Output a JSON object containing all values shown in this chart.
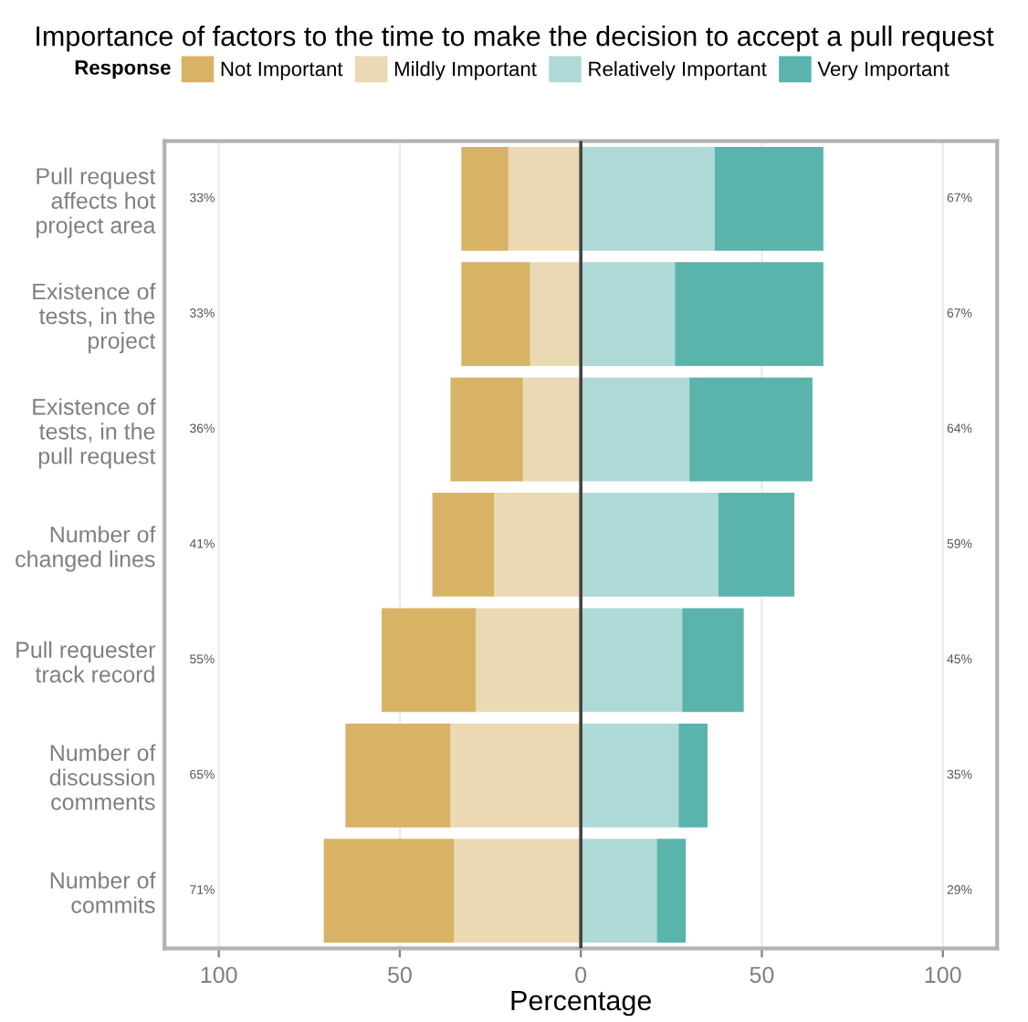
{
  "chart_data": {
    "type": "bar",
    "orientation": "horizontal",
    "stacked": true,
    "title": "Importance of factors to the time to make the decision to accept a pull request",
    "xlabel": "Percentage",
    "legend_title": "Response",
    "legend": "top",
    "categories": [
      "Pull request\naffects hot\nproject area",
      "Existence of\ntests, in the\nproject",
      "Existence of\ntests, in the\npull request",
      "Number of\nchanged lines",
      "Pull requester\ntrack record",
      "Number of\ndiscussion\ncomments",
      "Number of\ncommits"
    ],
    "series": [
      {
        "name": "Mildly Important",
        "color": "#ead9b3",
        "values": [
          -20,
          -14,
          -16,
          -24,
          -29,
          -36,
          -35
        ]
      },
      {
        "name": "Not Important",
        "color": "#d8b365",
        "values": [
          -13,
          -19,
          -20,
          -17,
          -26,
          -29,
          -36
        ]
      },
      {
        "name": "Relatively Important",
        "color": "#afd9d6",
        "values": [
          37,
          26,
          30,
          38,
          28,
          27,
          21
        ]
      },
      {
        "name": "Very Important",
        "color": "#5ab4ac",
        "values": [
          30,
          41,
          34,
          21,
          17,
          8,
          8
        ]
      }
    ],
    "totals": [
      [
        "33%",
        "67%"
      ],
      [
        "33%",
        "67%"
      ],
      [
        "36%",
        "64%"
      ],
      [
        "41%",
        "59%"
      ],
      [
        "55%",
        "45%"
      ],
      [
        "65%",
        "35%"
      ],
      [
        "71%",
        "29%"
      ]
    ],
    "xlim": [
      -115,
      115
    ],
    "xticks": [
      {
        "value": -100,
        "label": "100"
      },
      {
        "value": -50,
        "label": "50"
      },
      0,
      50,
      100
    ],
    "ref_lines": [
      {
        "axis": "x",
        "value": 0,
        "color": "#444444"
      }
    ],
    "grid": "x"
  }
}
